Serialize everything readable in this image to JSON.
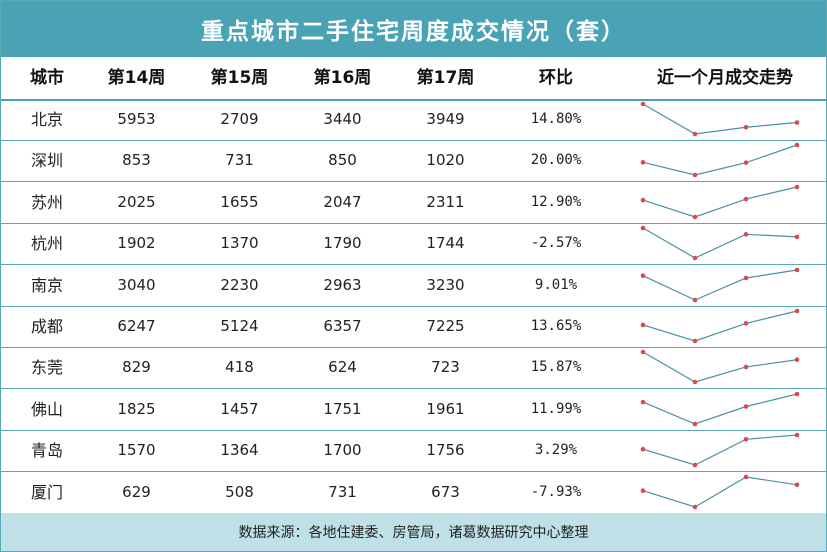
{
  "title": "重点城市二手住宅周度成交情况（套）",
  "headers": [
    "城市",
    "第14周",
    "第15周",
    "第16周",
    "第17周",
    "环比",
    "近一个月成交走势"
  ],
  "footer": "数据来源：各地住建委、房管局，诸葛数据研究中心整理",
  "colors": {
    "accent": "#4aa3b4",
    "footer_bg": "#bfe0e6",
    "line": "#4a90a4",
    "marker": "#e0474c"
  },
  "chart_data": {
    "type": "table",
    "columns": [
      "第14周",
      "第15周",
      "第16周",
      "第17周"
    ],
    "rows": [
      {
        "city": "北京",
        "values": [
          5953,
          2709,
          3440,
          3949
        ],
        "change": "14.80%"
      },
      {
        "city": "深圳",
        "values": [
          853,
          731,
          850,
          1020
        ],
        "change": "20.00%"
      },
      {
        "city": "苏州",
        "values": [
          2025,
          1655,
          2047,
          2311
        ],
        "change": "12.90%"
      },
      {
        "city": "杭州",
        "values": [
          1902,
          1370,
          1790,
          1744
        ],
        "change": "-2.57%"
      },
      {
        "city": "南京",
        "values": [
          3040,
          2230,
          2963,
          3230
        ],
        "change": "9.01%"
      },
      {
        "city": "成都",
        "values": [
          6247,
          5124,
          6357,
          7225
        ],
        "change": "13.65%"
      },
      {
        "city": "东莞",
        "values": [
          829,
          418,
          624,
          723
        ],
        "change": "15.87%"
      },
      {
        "city": "佛山",
        "values": [
          1825,
          1457,
          1751,
          1961
        ],
        "change": "11.99%"
      },
      {
        "city": "青岛",
        "values": [
          1570,
          1364,
          1700,
          1756
        ],
        "change": "3.29%"
      },
      {
        "city": "厦门",
        "values": [
          629,
          508,
          731,
          673
        ],
        "change": "-7.93%"
      }
    ]
  }
}
